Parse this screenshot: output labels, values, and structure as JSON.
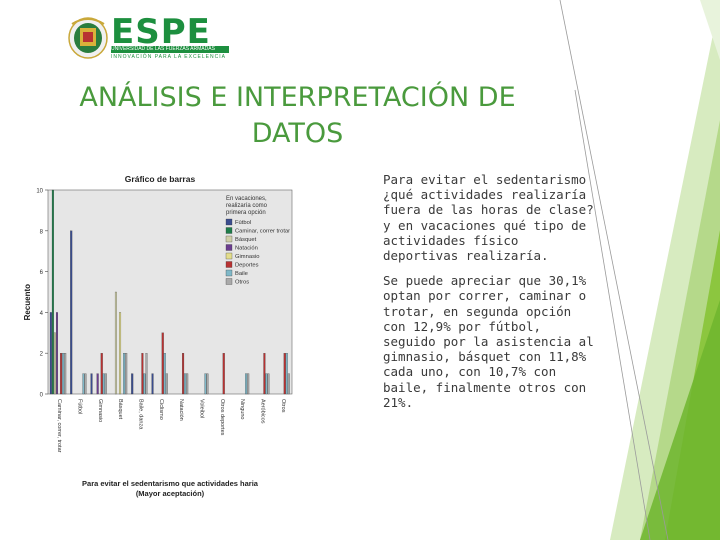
{
  "logo": {
    "name": "ESPE",
    "line1": "UNIVERSIDAD DE LAS FUERZAS ARMADAS",
    "line2": "INNOVACIÓN PARA LA EXCELENCIA"
  },
  "title": "ANÁLISIS E INTERPRETACIÓN DE DATOS",
  "paragraphs": [
    "Para evitar el sedentarismo ¿qué actividades realizaría fuera de las horas de clase? y en vacaciones qué tipo de actividades físico deportivas realizaría.",
    "Se puede apreciar que 30,1% optan por correr, caminar o trotar, en segunda opción con 12,9% por fútbol, seguido por la asistencia al gimnasio, básquet con 11,8% cada uno, con 10,7% con baile, finalmente otros con 21%."
  ],
  "colors": {
    "title": "#4a9a3d",
    "text": "#3a3a3a",
    "logo_green": "#1d8f3f",
    "deco_green": "#8cc63f"
  },
  "chart_data": {
    "type": "bar",
    "title": "Gráfico de barras",
    "ylabel": "Recuento",
    "xlabel": "Para evitar el sedentarismo que actividades haria (Mayor aceptación)",
    "ylim": [
      0,
      10
    ],
    "yticks": [
      0,
      2,
      4,
      6,
      8,
      10
    ],
    "legend_title": "En vacaciones, realizaría como primera opción",
    "legend_position": "right",
    "series": [
      {
        "name": "Fútbol",
        "color": "#3b4d8f",
        "values": [
          4,
          8,
          1,
          0,
          1,
          1,
          0,
          0,
          0,
          0,
          0,
          0
        ]
      },
      {
        "name": "Caminar, correr trotar",
        "color": "#1e7d4a",
        "values": [
          10,
          0,
          0,
          0,
          0,
          0,
          0,
          0,
          0,
          0,
          0,
          0
        ]
      },
      {
        "name": "Básquet",
        "color": "#cfcfa8",
        "values": [
          3,
          0,
          0,
          5,
          0,
          0,
          0,
          0,
          0,
          0,
          0,
          0
        ]
      },
      {
        "name": "Natación",
        "color": "#6b3d8f",
        "values": [
          4,
          0,
          1,
          0,
          0,
          0,
          0,
          0,
          0,
          0,
          0,
          0
        ]
      },
      {
        "name": "Gimnasio",
        "color": "#e3dd8c",
        "values": [
          0,
          0,
          0,
          4,
          0,
          0,
          0,
          0,
          0,
          0,
          0,
          0
        ]
      },
      {
        "name": "Deportes",
        "color": "#b83232",
        "values": [
          2,
          0,
          2,
          0,
          2,
          3,
          2,
          0,
          2,
          0,
          2,
          2
        ]
      },
      {
        "name": "Baile",
        "color": "#7fb8c8",
        "values": [
          2,
          1,
          1,
          2,
          1,
          2,
          1,
          1,
          0,
          1,
          1,
          2
        ]
      },
      {
        "name": "Otros",
        "color": "#aaaaaa",
        "values": [
          2,
          1,
          1,
          2,
          2,
          1,
          1,
          1,
          0,
          1,
          1,
          1
        ]
      }
    ],
    "categories": [
      "Caminar, correr, trotar",
      "Fútbol",
      "Gimnasio",
      "Básquet",
      "Baile, danza",
      "Ciclismo",
      "Natación",
      "Voleibol",
      "Otros deportes",
      "Ninguno",
      "Aeróbicos",
      "Otros"
    ]
  }
}
